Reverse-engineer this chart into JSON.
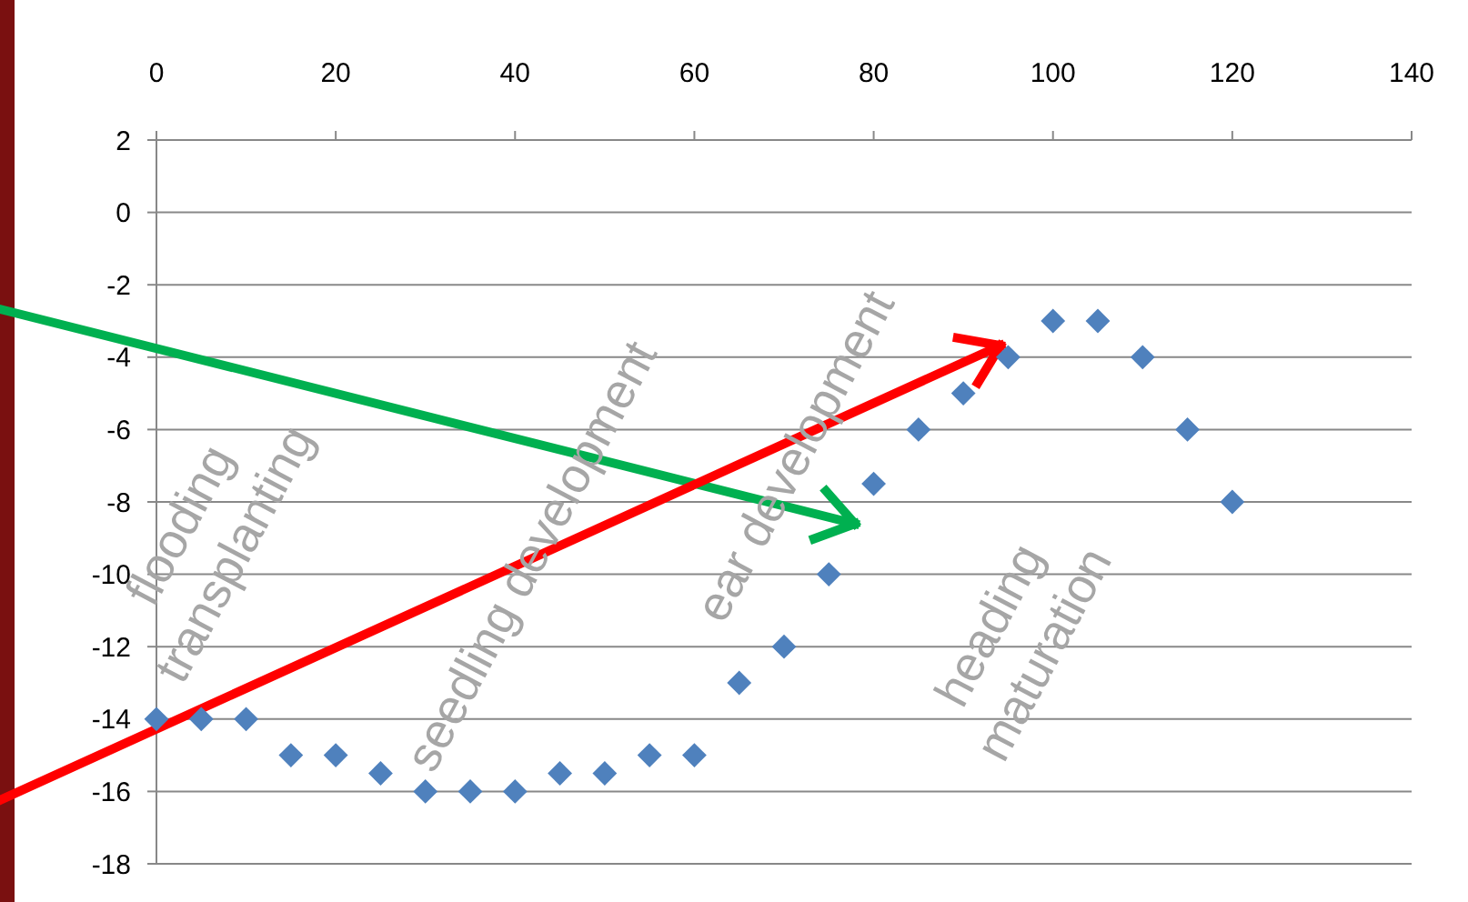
{
  "chart_data": {
    "type": "scatter",
    "x": [
      0,
      5,
      10,
      15,
      20,
      25,
      30,
      35,
      40,
      45,
      50,
      55,
      60,
      65,
      70,
      75,
      80,
      85,
      90,
      95,
      100,
      105,
      110,
      115,
      120
    ],
    "series": [
      {
        "color": "#4f81bd",
        "values": [
          -14,
          -14,
          -14,
          -15,
          -15,
          -15.5,
          -16,
          -16,
          -16,
          -15.5,
          -15.5,
          -15,
          -15,
          -13,
          -12,
          -10,
          -7.5,
          -6,
          -5,
          -4,
          -3,
          -3,
          -4,
          -6,
          -8
        ]
      }
    ],
    "xlim": [
      0,
      140
    ],
    "xticks": [
      0,
      20,
      40,
      60,
      80,
      100,
      120,
      140
    ],
    "ylim": [
      -18,
      2
    ],
    "yticks": [
      -18,
      -16,
      -14,
      -12,
      -10,
      -8,
      -6,
      -4,
      -2,
      0,
      2
    ],
    "grid": "y",
    "marker": "diamond",
    "annotations": [
      "flooding\ntransplanting",
      "seedling development",
      "ear development",
      "heading\nmaturation"
    ]
  }
}
